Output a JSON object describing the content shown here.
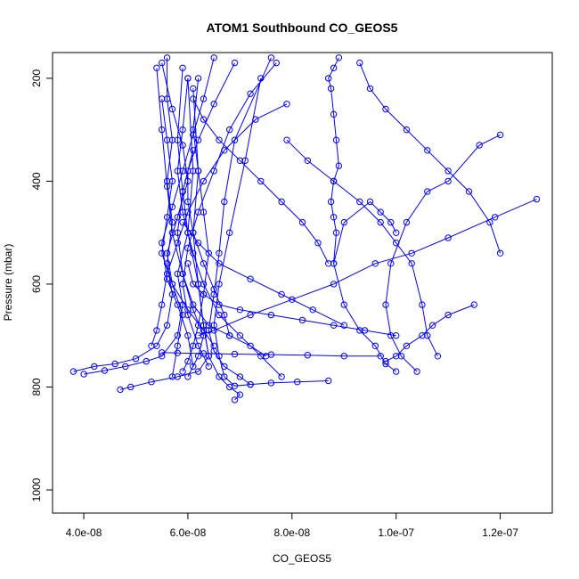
{
  "chart_data": {
    "type": "line",
    "title": "ATOM1 Southbound CO_GEOS5",
    "xlabel": "CO_GEOS5",
    "ylabel": "Pressure (mbar)",
    "xlim": [
      3.4e-08,
      1.3e-07
    ],
    "ylim": [
      1045,
      150
    ],
    "y_reversed": true,
    "x_ticks": [
      4e-08,
      6e-08,
      8e-08,
      1e-07,
      1.2e-07
    ],
    "x_tick_labels": [
      "4.0e-08",
      "6.0e-08",
      "8.0e-08",
      "1.0e-07",
      "1.2e-07"
    ],
    "y_ticks": [
      200,
      400,
      600,
      800,
      1000
    ],
    "y_tick_labels": [
      "200",
      "400",
      "600",
      "800",
      "1000"
    ],
    "grid": false,
    "color": "#0000ff",
    "series": [
      {
        "x": [
          3.8e-08,
          4.2e-08,
          4.6e-08,
          5e-08,
          5.4e-08,
          5.6e-08,
          5.7e-08,
          5.6e-08,
          5.7e-08,
          5.6e-08,
          5.7e-08,
          5.6e-08,
          5.6e-08
        ],
        "y": [
          770,
          760,
          755,
          745,
          720,
          680,
          620,
          560,
          480,
          400,
          320,
          240,
          160
        ]
      },
      {
        "x": [
          4e-08,
          4.4e-08,
          4.8e-08,
          5.2e-08,
          5.5e-08,
          5.8e-08,
          5.9e-08,
          5.8e-08,
          6e-08,
          5.9e-08,
          5.8e-08,
          5.9e-08
        ],
        "y": [
          775,
          768,
          760,
          750,
          740,
          700,
          640,
          580,
          500,
          420,
          320,
          180
        ]
      },
      {
        "x": [
          4.7e-08,
          4.9e-08,
          5.3e-08,
          5.8e-08,
          6.2e-08,
          6.4e-08,
          6.3e-08,
          6.2e-08,
          6e-08,
          6.1e-08,
          6e-08
        ],
        "y": [
          805,
          800,
          790,
          780,
          770,
          740,
          680,
          600,
          500,
          380,
          200
        ]
      },
      {
        "x": [
          6.9e-08,
          7e-08,
          6.8e-08,
          6.6e-08,
          6.4e-08,
          6.3e-08,
          6.2e-08,
          6.1e-08,
          6.2e-08,
          6.1e-08
        ],
        "y": [
          825,
          815,
          800,
          780,
          740,
          680,
          600,
          500,
          380,
          220
        ]
      },
      {
        "x": [
          7.2e-08,
          7e-08,
          6.7e-08,
          6.5e-08,
          6.4e-08,
          6.5e-08,
          6.6e-08,
          6.7e-08,
          6.9e-08,
          7.6e-08
        ],
        "y": [
          795,
          780,
          760,
          730,
          690,
          620,
          540,
          440,
          320,
          160
        ]
      },
      {
        "x": [
          8.7e-08,
          8.1e-08,
          7.6e-08,
          7.2e-08,
          6.9e-08,
          6.7e-08,
          6.6e-08,
          6.5e-08,
          6.6e-08,
          6.8e-08,
          7.1e-08,
          7.4e-08
        ],
        "y": [
          788,
          790,
          792,
          795,
          798,
          780,
          740,
          680,
          600,
          500,
          360,
          200
        ]
      },
      {
        "x": [
          8.8e-08,
          8.85e-08,
          8.8e-08,
          8.75e-08,
          8.8e-08,
          8.9e-08,
          8.85e-08,
          8.8e-08,
          8.75e-08,
          8.7e-08,
          8.8e-08,
          8.9e-08
        ],
        "y": [
          560,
          500,
          470,
          440,
          400,
          370,
          320,
          270,
          220,
          200,
          180,
          160
        ]
      },
      {
        "x": [
          1e-07,
          9.8e-08,
          9.6e-08,
          9.3e-08,
          9e-08,
          8.8e-08,
          9e-08,
          9.5e-08,
          9.7e-08,
          9.9e-08,
          1e-07
        ],
        "y": [
          770,
          755,
          720,
          690,
          640,
          560,
          480,
          440,
          460,
          480,
          500
        ]
      },
      {
        "x": [
          1.04e-07,
          1.01e-07,
          9.9e-08,
          9.8e-08,
          9.9e-08,
          1.02e-07,
          1.06e-07,
          1.1e-07,
          1.16e-07,
          1.2e-07
        ],
        "y": [
          770,
          740,
          700,
          640,
          560,
          480,
          420,
          400,
          330,
          310
        ]
      },
      {
        "x": [
          1.08e-07,
          1.06e-07,
          1.05e-07,
          1.03e-07,
          1e-07,
          9.7e-08,
          9.3e-08,
          8.8e-08,
          8.3e-08,
          7.9e-08
        ],
        "y": [
          740,
          700,
          640,
          560,
          520,
          480,
          440,
          400,
          360,
          320
        ]
      },
      {
        "x": [
          1.27e-07,
          1.19e-07,
          1.1e-07,
          1.03e-07,
          9.6e-08,
          8.8e-08,
          8e-08,
          7.2e-08,
          6.5e-08,
          6.2e-08
        ],
        "y": [
          435,
          470,
          510,
          540,
          560,
          600,
          630,
          660,
          690,
          700
        ]
      },
      {
        "x": [
          1.2e-07,
          1.18e-07,
          1.14e-07,
          1.1e-07,
          1.06e-07,
          1.02e-07,
          9.8e-08,
          9.5e-08,
          9.3e-08
        ],
        "y": [
          540,
          480,
          420,
          380,
          340,
          300,
          260,
          220,
          170
        ]
      },
      {
        "x": [
          1.15e-07,
          1.1e-07,
          1.07e-07,
          1.05e-07,
          1.02e-07,
          1e-07,
          9.8e-08
        ],
        "y": [
          640,
          660,
          680,
          700,
          720,
          740,
          750
        ]
      },
      {
        "x": [
          5.3e-08,
          5.4e-08,
          5.5e-08,
          5.6e-08,
          5.8e-08,
          6e-08,
          6.3e-08,
          6.7e-08,
          7.3e-08,
          7.9e-08
        ],
        "y": [
          720,
          690,
          640,
          580,
          520,
          460,
          400,
          340,
          280,
          250
        ]
      },
      {
        "x": [
          6e-08,
          6.2e-08,
          6.3e-08,
          6.1e-08,
          5.9e-08,
          5.7e-08,
          5.6e-08,
          5.5e-08,
          5.4e-08
        ],
        "y": [
          780,
          740,
          700,
          650,
          580,
          500,
          410,
          300,
          180
        ]
      },
      {
        "x": [
          6.8e-08,
          6.7e-08,
          6.5e-08,
          6.3e-08,
          6.1e-08,
          6e-08,
          6e-08,
          6.2e-08,
          6.5e-08,
          6.9e-08
        ],
        "y": [
          700,
          660,
          610,
          560,
          500,
          440,
          380,
          320,
          250,
          170
        ]
      },
      {
        "x": [
          6.4e-08,
          6.2e-08,
          6e-08,
          5.9e-08,
          6e-08,
          6.2e-08,
          6.5e-08,
          6.8e-08,
          7.2e-08,
          7.7e-08
        ],
        "y": [
          760,
          720,
          660,
          600,
          530,
          460,
          380,
          300,
          230,
          170
        ]
      },
      {
        "x": [
          7.8e-08,
          7.4e-08,
          7e-08,
          6.6e-08,
          6.3e-08,
          6.1e-08,
          5.9e-08,
          5.8e-08,
          5.9e-08,
          6e-08
        ],
        "y": [
          780,
          740,
          700,
          660,
          600,
          540,
          460,
          380,
          300,
          200
        ]
      },
      {
        "x": [
          5.7e-08,
          5.8e-08,
          5.9e-08,
          5.7e-08,
          5.6e-08,
          5.8e-08,
          6e-08,
          5.9e-08,
          5.7e-08,
          5.5e-08
        ],
        "y": [
          780,
          720,
          660,
          600,
          540,
          470,
          400,
          330,
          260,
          170
        ]
      },
      {
        "x": [
          6.1e-08,
          6e-08,
          5.8e-08,
          5.6e-08,
          5.5e-08,
          5.7e-08,
          5.9e-08,
          6.1e-08,
          6.3e-08,
          6.5e-08
        ],
        "y": [
          760,
          700,
          640,
          590,
          520,
          450,
          380,
          310,
          240,
          160
        ]
      },
      {
        "x": [
          9e-08,
          8.4e-08,
          7.8e-08,
          7.2e-08,
          6.6e-08,
          6.2e-08,
          5.9e-08
        ],
        "y": [
          680,
          650,
          620,
          590,
          560,
          520,
          480
        ]
      },
      {
        "x": [
          8.7e-08,
          8.5e-08,
          8.2e-08,
          7.8e-08,
          7.4e-08,
          7e-08,
          6.6e-08,
          6.3e-08,
          6.1e-08
        ],
        "y": [
          560,
          520,
          480,
          440,
          400,
          360,
          320,
          280,
          240
        ]
      },
      {
        "x": [
          7.5e-08,
          7.2e-08,
          6.8e-08,
          6.4e-08,
          6.1e-08,
          5.9e-08,
          5.8e-08,
          5.9e-08,
          6.1e-08
        ],
        "y": [
          740,
          720,
          700,
          680,
          640,
          580,
          500,
          420,
          340
        ]
      },
      {
        "x": [
          1e-07,
          9.4e-08,
          8.8e-08,
          8.2e-08,
          7.6e-08,
          7e-08,
          6.6e-08,
          6.3e-08,
          6.1e-08,
          6e-08
        ],
        "y": [
          700,
          690,
          680,
          670,
          660,
          650,
          640,
          620,
          600,
          560
        ]
      },
      {
        "x": [
          9.7e-08,
          9e-08,
          8.3e-08,
          7.6e-08,
          6.9e-08,
          6.3e-08,
          5.8e-08,
          5.5e-08
        ],
        "y": [
          740,
          740,
          738,
          737,
          736,
          735,
          734,
          733
        ]
      },
      {
        "x": [
          6.5e-08,
          6.3e-08,
          6e-08,
          5.7e-08,
          5.5e-08,
          5.6e-08,
          5.7e-08,
          5.6e-08,
          5.5e-08
        ],
        "y": [
          720,
          690,
          650,
          600,
          540,
          470,
          400,
          320,
          240
        ]
      },
      {
        "x": [
          5.9e-08,
          6e-08,
          6.1e-08,
          6.2e-08,
          6.3e-08,
          6.4e-08,
          6.3e-08,
          6.2e-08,
          6.1e-08,
          6.2e-08
        ],
        "y": [
          770,
          750,
          720,
          680,
          620,
          540,
          460,
          380,
          300,
          200
        ]
      }
    ]
  }
}
